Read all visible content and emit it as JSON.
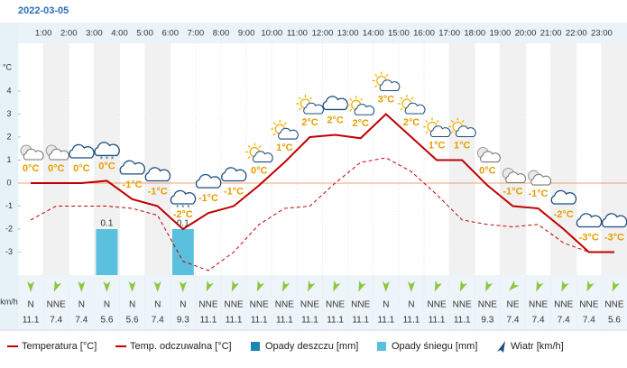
{
  "chart_data": {
    "type": "line",
    "title": "2022-03-05",
    "y_label": "°C",
    "categories": [
      null,
      "1:00",
      "2:00",
      "3:00",
      "4:00",
      "5:00",
      "6:00",
      "7:00",
      "8:00",
      "9:00",
      "10:00",
      "11:00",
      "12:00",
      "13:00",
      "14:00",
      "15:00",
      "16:00",
      "17:00",
      "18:00",
      "19:00",
      "20:00",
      "21:00",
      "22:00",
      "23:00"
    ],
    "ylim": [
      -4,
      6
    ],
    "yticks": [
      -3,
      -2,
      -1,
      0,
      1,
      2,
      3,
      4
    ],
    "series": [
      {
        "name": "Temperatura [°C]",
        "color": "#c00000",
        "dashed": false,
        "values": [
          0,
          0,
          0,
          0.1,
          -0.7,
          -1,
          -2,
          -1.3,
          -1,
          -0.1,
          0.9,
          2,
          2.1,
          1.95,
          3,
          2,
          1,
          1,
          -0.1,
          -1,
          -1.1,
          -2,
          -3,
          -3
        ],
        "value_labels": [
          "0°C",
          "0°C",
          "0°C",
          "0°C",
          "-1°C",
          "-1°C",
          "-2°C",
          "-1°C",
          "-1°C",
          "0°C",
          "1°C",
          "2°C",
          "2°C",
          "2°C",
          "3°C",
          "2°C",
          "1°C",
          "1°C",
          "0°C",
          "-1°C",
          "-1°C",
          "-2°C",
          "-3°C",
          "-3°C"
        ]
      },
      {
        "name": "Temp. odczuwalna [°C]",
        "color": "#c00000",
        "dashed": true,
        "values": [
          -1.6,
          -1,
          -1,
          -1,
          -1.1,
          -1.4,
          -3.4,
          -3.8,
          -3,
          -1.8,
          -1.1,
          -1,
          0,
          0.9,
          1.1,
          0.5,
          -0.5,
          -1.6,
          -1.8,
          -1.9,
          -1.8,
          -2.6,
          -3,
          -3
        ]
      }
    ],
    "precip_lim": [
      0,
      0.5
    ],
    "precipitation": [
      {
        "name": "Opady deszczu [mm]",
        "color": "#1a86b5",
        "values": [
          0,
          0,
          0,
          0,
          0,
          0,
          0,
          0,
          0,
          0,
          0,
          0,
          0,
          0,
          0,
          0,
          0,
          0,
          0,
          0,
          0,
          0,
          0,
          0
        ]
      },
      {
        "name": "Opady śniegu [mm]",
        "color": "#5bc0de",
        "values": [
          0,
          0,
          0,
          0.1,
          0,
          0,
          0.1,
          0,
          0,
          0,
          0,
          0,
          0,
          0,
          0,
          0,
          0,
          0,
          0,
          0,
          0,
          0,
          0,
          0
        ]
      }
    ],
    "wind": {
      "name": "Wiatr [km/h]",
      "unit": "km/h",
      "color": "#1c4e80",
      "directions": [
        "N",
        "NNE",
        "N",
        "N",
        "N",
        "N",
        "N",
        "NNE",
        "NNE",
        "NNE",
        "NNE",
        "NNE",
        "NNE",
        "NNE",
        "N",
        "N",
        "NNE",
        "NNE",
        "NNE",
        "NE",
        "NNE",
        "NNE",
        "NNE",
        "NNE"
      ],
      "speeds": [
        11.1,
        7.4,
        7.4,
        5.6,
        5.6,
        7.4,
        9.3,
        11.1,
        11.1,
        11.1,
        11.1,
        11.1,
        11.1,
        11.1,
        11.1,
        11.1,
        11.1,
        11.1,
        9.3,
        7.4,
        7.4,
        7.4,
        7.4,
        5.6
      ]
    }
  }
}
